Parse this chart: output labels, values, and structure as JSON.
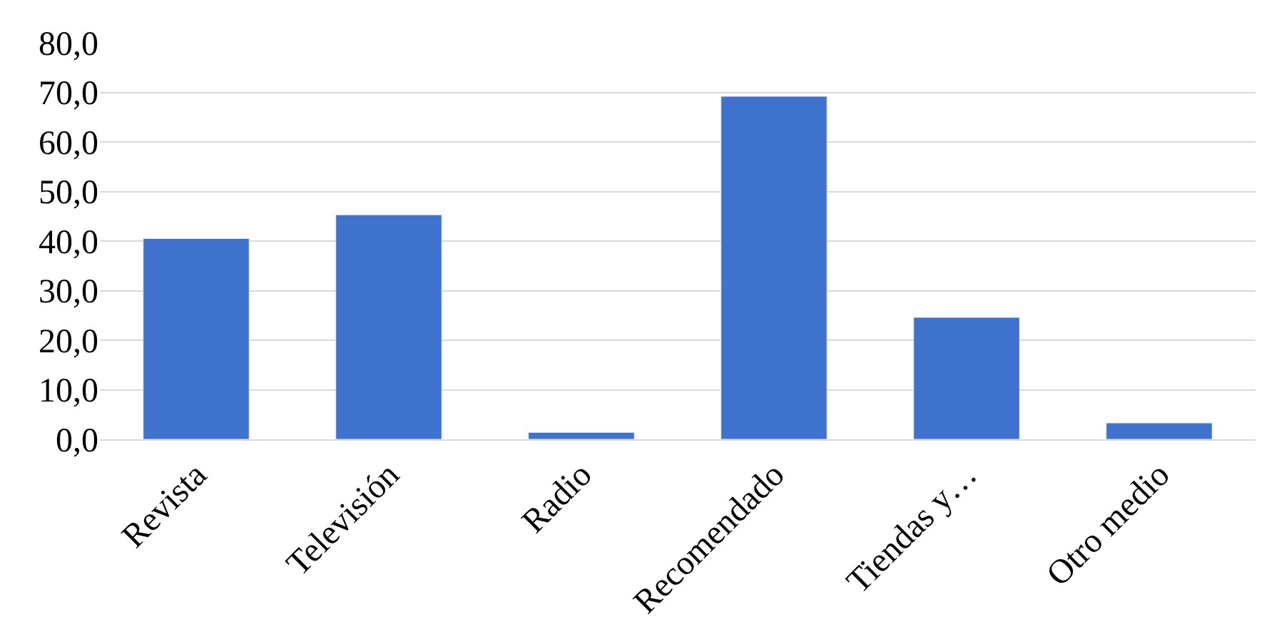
{
  "chart_data": {
    "type": "bar",
    "categories": [
      "Revista",
      "Televisión",
      "Radio",
      "Recomendado",
      "Tiendas y…",
      "Otro medio"
    ],
    "values": [
      40.5,
      45.3,
      1.4,
      69.2,
      24.6,
      3.3
    ],
    "color": "#3f72cc",
    "ylim": [
      0,
      80
    ],
    "yticks": [
      {
        "value": 0,
        "label": "0,0"
      },
      {
        "value": 10,
        "label": "10,0"
      },
      {
        "value": 20,
        "label": "20,0"
      },
      {
        "value": 30,
        "label": "30,0"
      },
      {
        "value": 40,
        "label": "40,0"
      },
      {
        "value": 50,
        "label": "50,0"
      },
      {
        "value": 60,
        "label": "60,0"
      },
      {
        "value": 70,
        "label": "70,0"
      },
      {
        "value": 80,
        "label": "80,0"
      }
    ],
    "grid": "y",
    "legend": false
  }
}
